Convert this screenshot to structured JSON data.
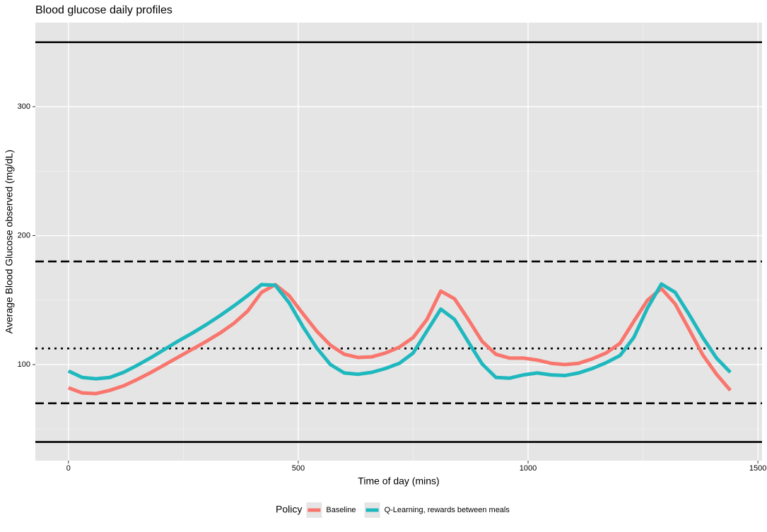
{
  "chart_data": {
    "type": "line",
    "title": "Blood glucose daily profiles",
    "x_label": "Time of day (mins)",
    "y_label": "Average Blood Glucose observed (mg/dL)",
    "legend_title": "Policy",
    "legend_position": "bottom",
    "grid": true,
    "xlim": [
      -72,
      1509
    ],
    "ylim": [
      25.5,
      365.2
    ],
    "xticks": [
      0,
      500,
      1000,
      1500
    ],
    "yticks": [
      100,
      200,
      300
    ],
    "hlines": [
      {
        "value": 350,
        "style": "solid"
      },
      {
        "value": 180,
        "style": "dashed"
      },
      {
        "value": 112.5,
        "style": "dotted"
      },
      {
        "value": 70,
        "style": "dashed"
      },
      {
        "value": 40,
        "style": "solid"
      }
    ],
    "x": [
      0,
      30,
      60,
      90,
      120,
      150,
      180,
      210,
      240,
      270,
      300,
      330,
      360,
      390,
      420,
      450,
      480,
      510,
      540,
      570,
      600,
      630,
      660,
      690,
      720,
      750,
      780,
      810,
      840,
      870,
      900,
      930,
      960,
      990,
      1020,
      1050,
      1080,
      1110,
      1140,
      1170,
      1200,
      1230,
      1260,
      1290,
      1320,
      1350,
      1380,
      1410,
      1440
    ],
    "series": [
      {
        "name": "Baseline",
        "color": "#F8766D",
        "values": [
          82,
          78,
          77.5,
          80,
          83.5,
          88.5,
          94,
          100,
          106,
          112,
          118,
          124.5,
          132,
          141.5,
          156,
          162,
          153.5,
          139.5,
          126,
          115,
          108,
          105.5,
          106,
          109,
          113.5,
          121,
          135,
          157,
          151,
          135,
          118,
          108,
          105,
          105,
          103.5,
          101,
          100,
          101,
          104.5,
          109,
          116.5,
          133.5,
          150,
          159,
          147,
          127.5,
          107.5,
          92.5,
          80
        ]
      },
      {
        "name": "Q-Learning, rewards between meals",
        "color": "#1FB8BE",
        "values": [
          95,
          90,
          89,
          90,
          94,
          99.5,
          105.5,
          112,
          118.5,
          124.5,
          131,
          138,
          145.5,
          153.5,
          162,
          161.5,
          148,
          129.5,
          113,
          100,
          93.5,
          92.5,
          94,
          97,
          101,
          109,
          126,
          143,
          135,
          117.5,
          100.5,
          90,
          89.5,
          92,
          93.5,
          92,
          91.5,
          93.5,
          97,
          101.5,
          107,
          121,
          144,
          162.5,
          156,
          139,
          121,
          105,
          94
        ]
      }
    ]
  }
}
